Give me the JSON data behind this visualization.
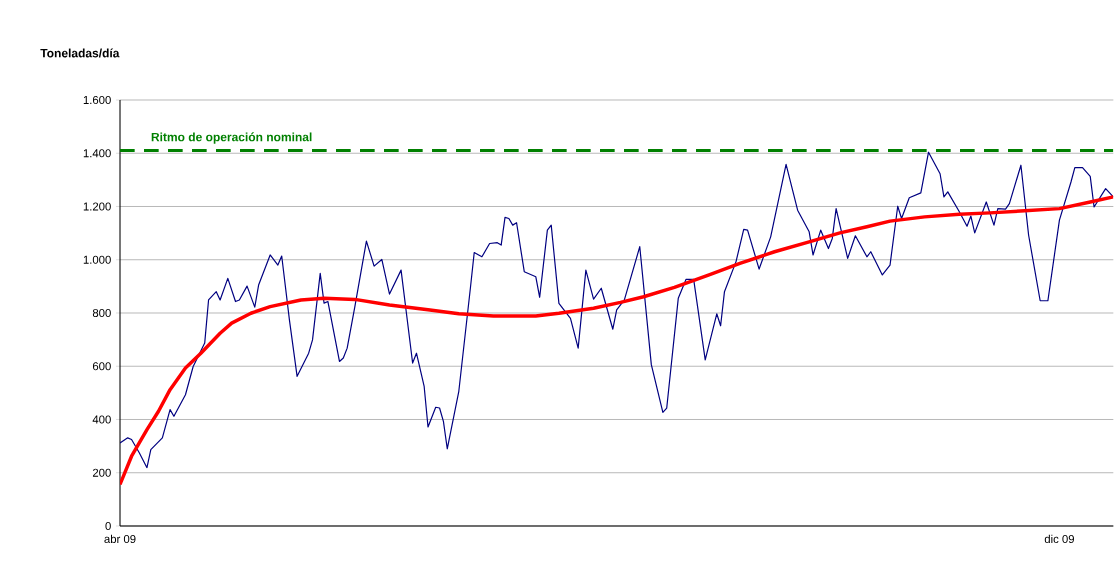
{
  "chart_data": {
    "type": "line",
    "ylabel": "Toneladas/día",
    "xlim": [
      "2009-04-01",
      "2009-12-15"
    ],
    "xticks": [
      {
        "value": "2009-04-01",
        "label": "abr 09"
      },
      {
        "value": "2009-12-01",
        "label": "dic 09"
      }
    ],
    "ylim": [
      0,
      1600
    ],
    "yticks": [
      0,
      200,
      400,
      600,
      800,
      {
        "value": 1000,
        "label": "1.000"
      },
      {
        "value": 1200,
        "label": "1.200"
      },
      {
        "value": 1400,
        "label": "1.400"
      },
      {
        "value": 1600,
        "label": "1.600"
      }
    ],
    "grid": "y",
    "ref_lines": [
      {
        "axis": "y",
        "value": 1410,
        "label": "Ritmo de operación nominal",
        "color": "#008000",
        "line_style": "dashed"
      }
    ],
    "series": [
      {
        "color": "#000080",
        "x": [
          "2009-04-01",
          "2009-04-03",
          "2009-04-04",
          "2009-04-06",
          "2009-04-08",
          "2009-04-09",
          "2009-04-12",
          "2009-04-14",
          "2009-04-15",
          "2009-04-18",
          "2009-04-20",
          "2009-04-23",
          "2009-04-24",
          "2009-04-26",
          "2009-04-27",
          "2009-04-29",
          "2009-05-01",
          "2009-05-02",
          "2009-05-04",
          "2009-05-06",
          "2009-05-07",
          "2009-05-10",
          "2009-05-12",
          "2009-05-13",
          "2009-05-15",
          "2009-05-17",
          "2009-05-20",
          "2009-05-21",
          "2009-05-23",
          "2009-05-24",
          "2009-05-25",
          "2009-05-28",
          "2009-05-29",
          "2009-05-30",
          "2009-06-01",
          "2009-06-04",
          "2009-06-06",
          "2009-06-08",
          "2009-06-10",
          "2009-06-13",
          "2009-06-16",
          "2009-06-17",
          "2009-06-19",
          "2009-06-20",
          "2009-06-22",
          "2009-06-23",
          "2009-06-24",
          "2009-06-25",
          "2009-06-28",
          "2009-07-01",
          "2009-07-02",
          "2009-07-04",
          "2009-07-06",
          "2009-07-08",
          "2009-07-09",
          "2009-07-10",
          "2009-07-11",
          "2009-07-12",
          "2009-07-13",
          "2009-07-15",
          "2009-07-18",
          "2009-07-19",
          "2009-07-21",
          "2009-07-22",
          "2009-07-24",
          "2009-07-27",
          "2009-07-29",
          "2009-07-31",
          "2009-08-02",
          "2009-08-04",
          "2009-08-07",
          "2009-08-08",
          "2009-08-10",
          "2009-08-14",
          "2009-08-17",
          "2009-08-20",
          "2009-08-21",
          "2009-08-24",
          "2009-08-26",
          "2009-08-28",
          "2009-08-31",
          "2009-09-03",
          "2009-09-04",
          "2009-09-05",
          "2009-09-08",
          "2009-09-10",
          "2009-09-11",
          "2009-09-14",
          "2009-09-17",
          "2009-09-21",
          "2009-09-24",
          "2009-09-27",
          "2009-09-28",
          "2009-09-30",
          "2009-10-02",
          "2009-10-03",
          "2009-10-04",
          "2009-10-07",
          "2009-10-09",
          "2009-10-12",
          "2009-10-13",
          "2009-10-16",
          "2009-10-18",
          "2009-10-20",
          "2009-10-21",
          "2009-10-23",
          "2009-10-26",
          "2009-10-28",
          "2009-10-31",
          "2009-11-01",
          "2009-11-02",
          "2009-11-05",
          "2009-11-07",
          "2009-11-08",
          "2009-11-09",
          "2009-11-12",
          "2009-11-14",
          "2009-11-15",
          "2009-11-17",
          "2009-11-18",
          "2009-11-21",
          "2009-11-23",
          "2009-11-26",
          "2009-11-28",
          "2009-12-01",
          "2009-12-04",
          "2009-12-05",
          "2009-12-07",
          "2009-12-09",
          "2009-12-10",
          "2009-12-13",
          "2009-12-15"
        ],
        "values": [
          312,
          331,
          325,
          275,
          219,
          287,
          331,
          437,
          412,
          493,
          599,
          687,
          849,
          880,
          849,
          930,
          843,
          849,
          901,
          822,
          905,
          1018,
          980,
          1014,
          774,
          562,
          649,
          699,
          949,
          837,
          843,
          618,
          631,
          668,
          824,
          1070,
          976,
          1001,
          871,
          961,
          612,
          649,
          524,
          372,
          446,
          443,
          393,
          290,
          506,
          893,
          1027,
          1011,
          1061,
          1064,
          1055,
          1159,
          1155,
          1130,
          1139,
          955,
          936,
          859,
          1111,
          1130,
          836,
          780,
          668,
          961,
          852,
          893,
          739,
          812,
          849,
          1049,
          606,
          427,
          443,
          855,
          926,
          926,
          624,
          797,
          752,
          880,
          993,
          1114,
          1111,
          965,
          1086,
          1358,
          1186,
          1105,
          1018,
          1111,
          1042,
          1080,
          1192,
          1005,
          1090,
          1011,
          1030,
          943,
          980,
          1201,
          1155,
          1233,
          1251,
          1404,
          1323,
          1236,
          1255,
          1180,
          1126,
          1164,
          1101,
          1217,
          1130,
          1192,
          1190,
          1211,
          1355,
          1092,
          846,
          846,
          1149,
          1292,
          1346,
          1346,
          1313,
          1198,
          1267,
          1236
        ]
      },
      {
        "color": "#ff0000",
        "x": [
          "2009-04-01",
          "2009-04-04",
          "2009-04-08",
          "2009-04-11",
          "2009-04-14",
          "2009-04-18",
          "2009-04-22",
          "2009-04-27",
          "2009-04-30",
          "2009-05-05",
          "2009-05-10",
          "2009-05-18",
          "2009-05-24",
          "2009-06-01",
          "2009-06-10",
          "2009-06-20",
          "2009-06-28",
          "2009-07-07",
          "2009-07-18",
          "2009-07-24",
          "2009-08-02",
          "2009-08-09",
          "2009-08-15",
          "2009-08-23",
          "2009-09-01",
          "2009-09-09",
          "2009-09-18",
          "2009-09-27",
          "2009-10-05",
          "2009-10-12",
          "2009-10-18",
          "2009-10-27",
          "2009-11-05",
          "2009-11-13",
          "2009-11-22",
          "2009-12-01",
          "2009-12-09",
          "2009-12-15"
        ],
        "values": [
          156,
          262,
          362,
          431,
          512,
          593,
          649,
          724,
          762,
          799,
          824,
          849,
          855,
          851,
          830,
          812,
          797,
          789,
          789,
          799,
          818,
          840,
          861,
          896,
          943,
          986,
          1030,
          1067,
          1101,
          1124,
          1145,
          1161,
          1171,
          1176,
          1184,
          1192,
          1217,
          1236
        ]
      }
    ]
  }
}
